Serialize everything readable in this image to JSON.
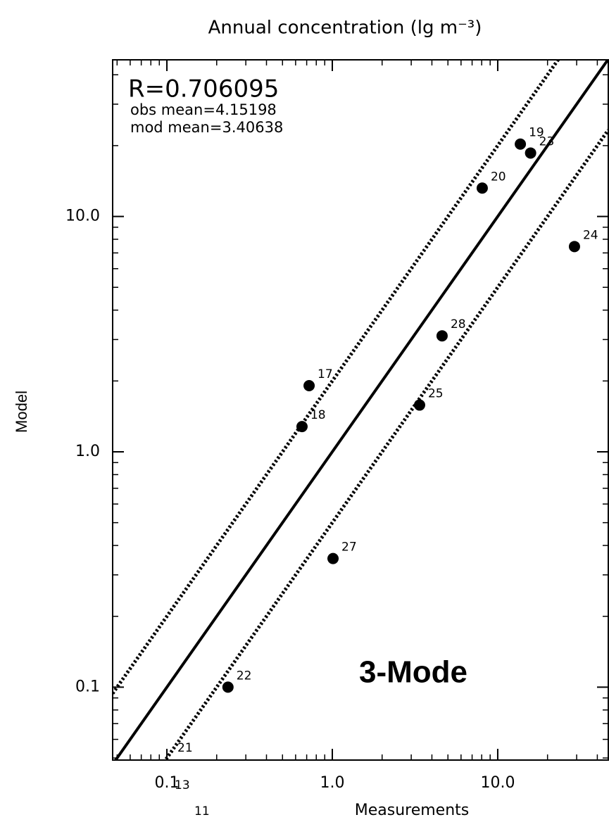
{
  "chart_data": {
    "type": "scatter",
    "title": "Annual concentration (lg m⁻³)",
    "x_label": "Measurements",
    "y_label": "Model",
    "stats": [
      "R=0.706095",
      "obs mean=4.15198",
      "mod mean=3.40638"
    ],
    "annotation": "3-Mode",
    "annotation_color": "#1a1adc",
    "log_x": true,
    "log_y": true,
    "xlim": [
      0.047,
      46.6
    ],
    "ylim": [
      0.049,
      46.3
    ],
    "xticks": [
      0.1,
      {
        "value": 1,
        "label": "1.0"
      },
      {
        "value": 10,
        "label": "10.0"
      }
    ],
    "yticks": [
      0.1,
      {
        "value": 1,
        "label": "1.0"
      },
      {
        "value": 10,
        "label": "10.0"
      }
    ],
    "minor_ticks": true,
    "color": "#000000",
    "point_labels": [
      "19",
      "23",
      "20",
      "24",
      "28",
      "25",
      "17",
      "18",
      "27",
      "22"
    ],
    "x": [
      13.7,
      15.8,
      8.06,
      29.1,
      4.61,
      3.37,
      0.724,
      0.656,
      1.01,
      0.234
    ],
    "values": [
      20.3,
      18.6,
      13.2,
      7.45,
      3.11,
      1.58,
      1.91,
      1.28,
      0.352,
      0.1
    ],
    "offplot_labels": [
      "21",
      "13",
      "11"
    ],
    "ratio_lines": [
      {
        "factor": 1,
        "style": "solid"
      },
      {
        "factor": 2,
        "style": "dotted"
      },
      {
        "factor": 0.5,
        "style": "dotted"
      }
    ]
  }
}
